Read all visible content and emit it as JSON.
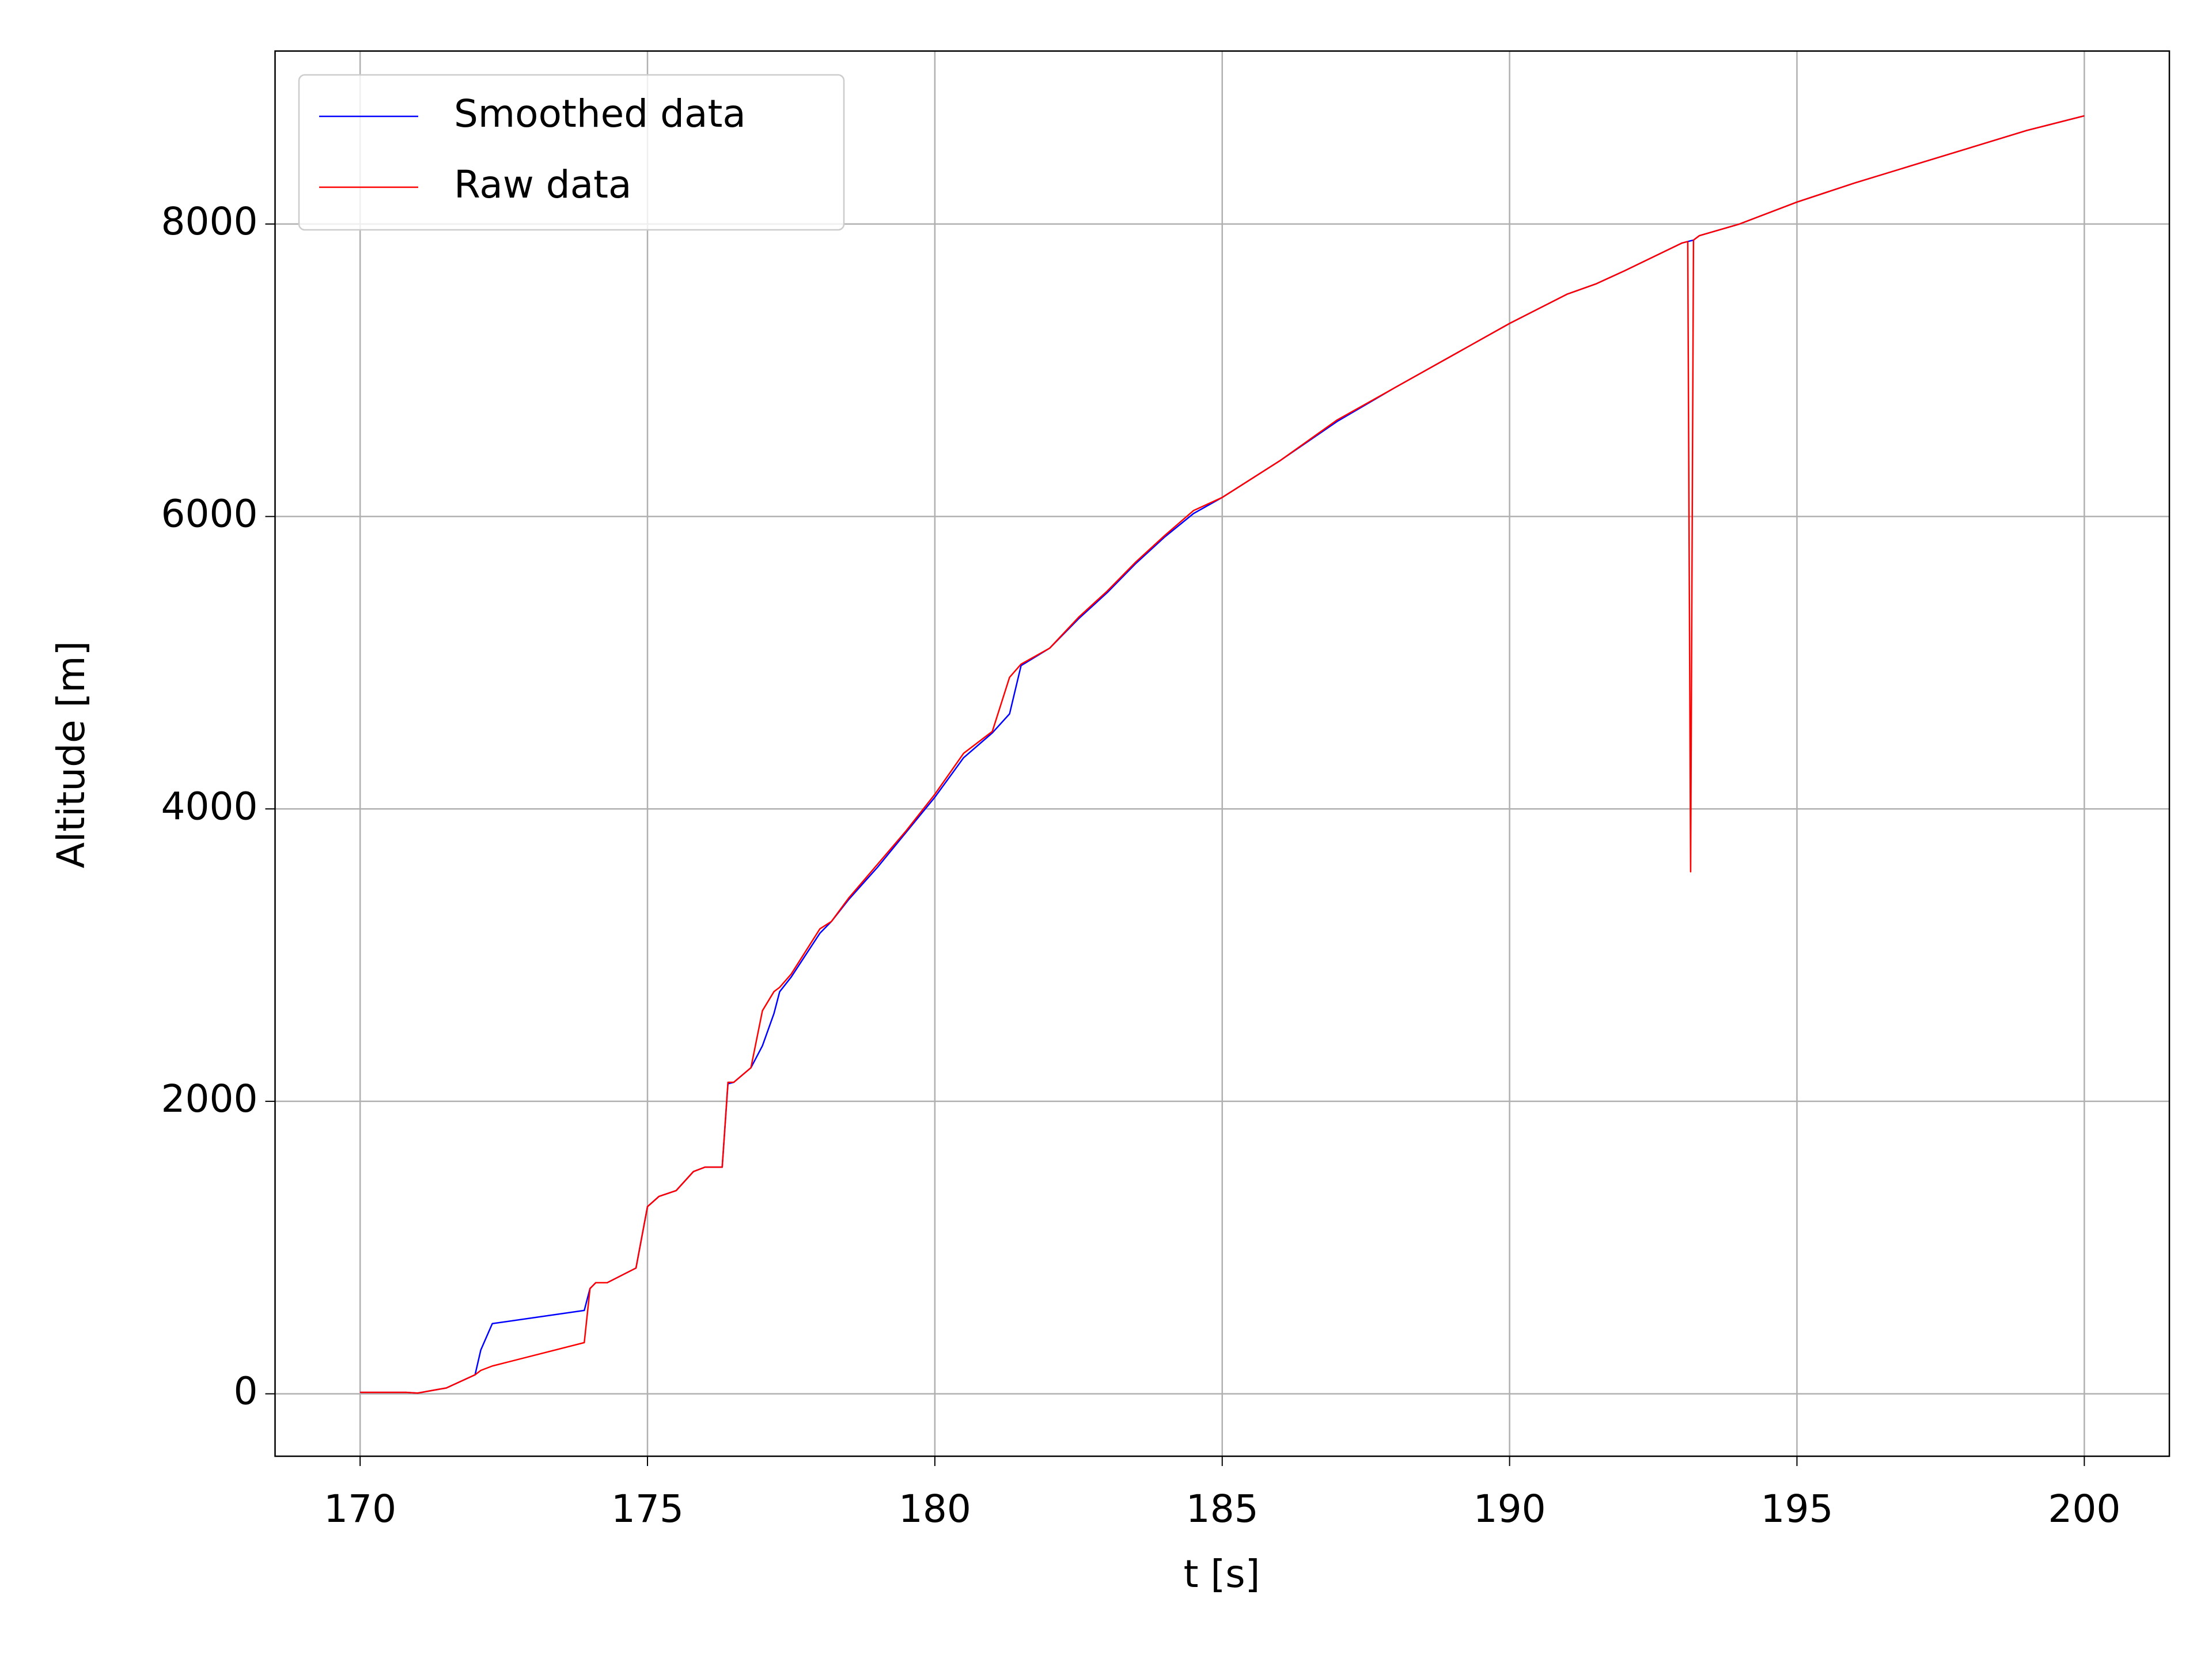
{
  "chart_data": {
    "type": "line",
    "xlabel": "t [s]",
    "ylabel": "Altitude [m]",
    "x": [
      170,
      170.8,
      171.0,
      171.5,
      172.0,
      172.1,
      172.3,
      173.9,
      174.0,
      174.1,
      174.3,
      174.8,
      175.0,
      175.2,
      175.5,
      175.8,
      176.0,
      176.3,
      176.4,
      176.5,
      176.8,
      177.0,
      177.2,
      177.3,
      177.5,
      178.0,
      178.2,
      178.5,
      179.0,
      179.5,
      180.0,
      180.5,
      181.0,
      181.3,
      181.5,
      182.0,
      182.5,
      183.0,
      183.5,
      184.0,
      184.5,
      185.0,
      186.0,
      187.0,
      188.0,
      189.0,
      190.0,
      191.0,
      191.5,
      192.0,
      193.0,
      193.1,
      193.15,
      193.2,
      193.3,
      194.0,
      195.0,
      196.0,
      197.0,
      198.0,
      199.0,
      200.0
    ],
    "series": [
      {
        "name": "Smoothed data",
        "color": "#0000ff",
        "values": [
          10,
          10,
          5,
          40,
          130,
          300,
          480,
          570,
          720,
          760,
          760,
          860,
          1280,
          1350,
          1390,
          1520,
          1550,
          1550,
          2120,
          2130,
          2230,
          2380,
          2600,
          2750,
          2850,
          3150,
          3230,
          3380,
          3600,
          3840,
          4080,
          4350,
          4520,
          4650,
          4980,
          5100,
          5300,
          5480,
          5680,
          5860,
          6020,
          6130,
          6380,
          6650,
          6880,
          7100,
          7320,
          7520,
          7590,
          7680,
          7870,
          7880,
          7885,
          7890,
          7920,
          8000,
          8150,
          8280,
          8400,
          8520,
          8640,
          8740
        ]
      },
      {
        "name": "Raw data",
        "color": "#ff0000",
        "values": [
          10,
          10,
          5,
          40,
          130,
          160,
          190,
          350,
          720,
          760,
          760,
          860,
          1280,
          1350,
          1390,
          1520,
          1550,
          1550,
          2130,
          2130,
          2230,
          2620,
          2750,
          2780,
          2870,
          3180,
          3230,
          3390,
          3620,
          3850,
          4100,
          4380,
          4530,
          4900,
          4990,
          5100,
          5310,
          5490,
          5690,
          5870,
          6040,
          6130,
          6380,
          6660,
          6880,
          7100,
          7320,
          7520,
          7590,
          7680,
          7870,
          7880,
          3570,
          7890,
          7920,
          8000,
          8150,
          8280,
          8400,
          8520,
          8640,
          8740
        ]
      }
    ],
    "xlim": [
      168.52,
      201.48
    ],
    "ylim": [
      -427,
      9183
    ],
    "xticks": [
      170,
      175,
      180,
      185,
      190,
      195,
      200
    ],
    "yticks": [
      0,
      2000,
      4000,
      6000,
      8000
    ],
    "grid": true,
    "legend": "upper left"
  }
}
